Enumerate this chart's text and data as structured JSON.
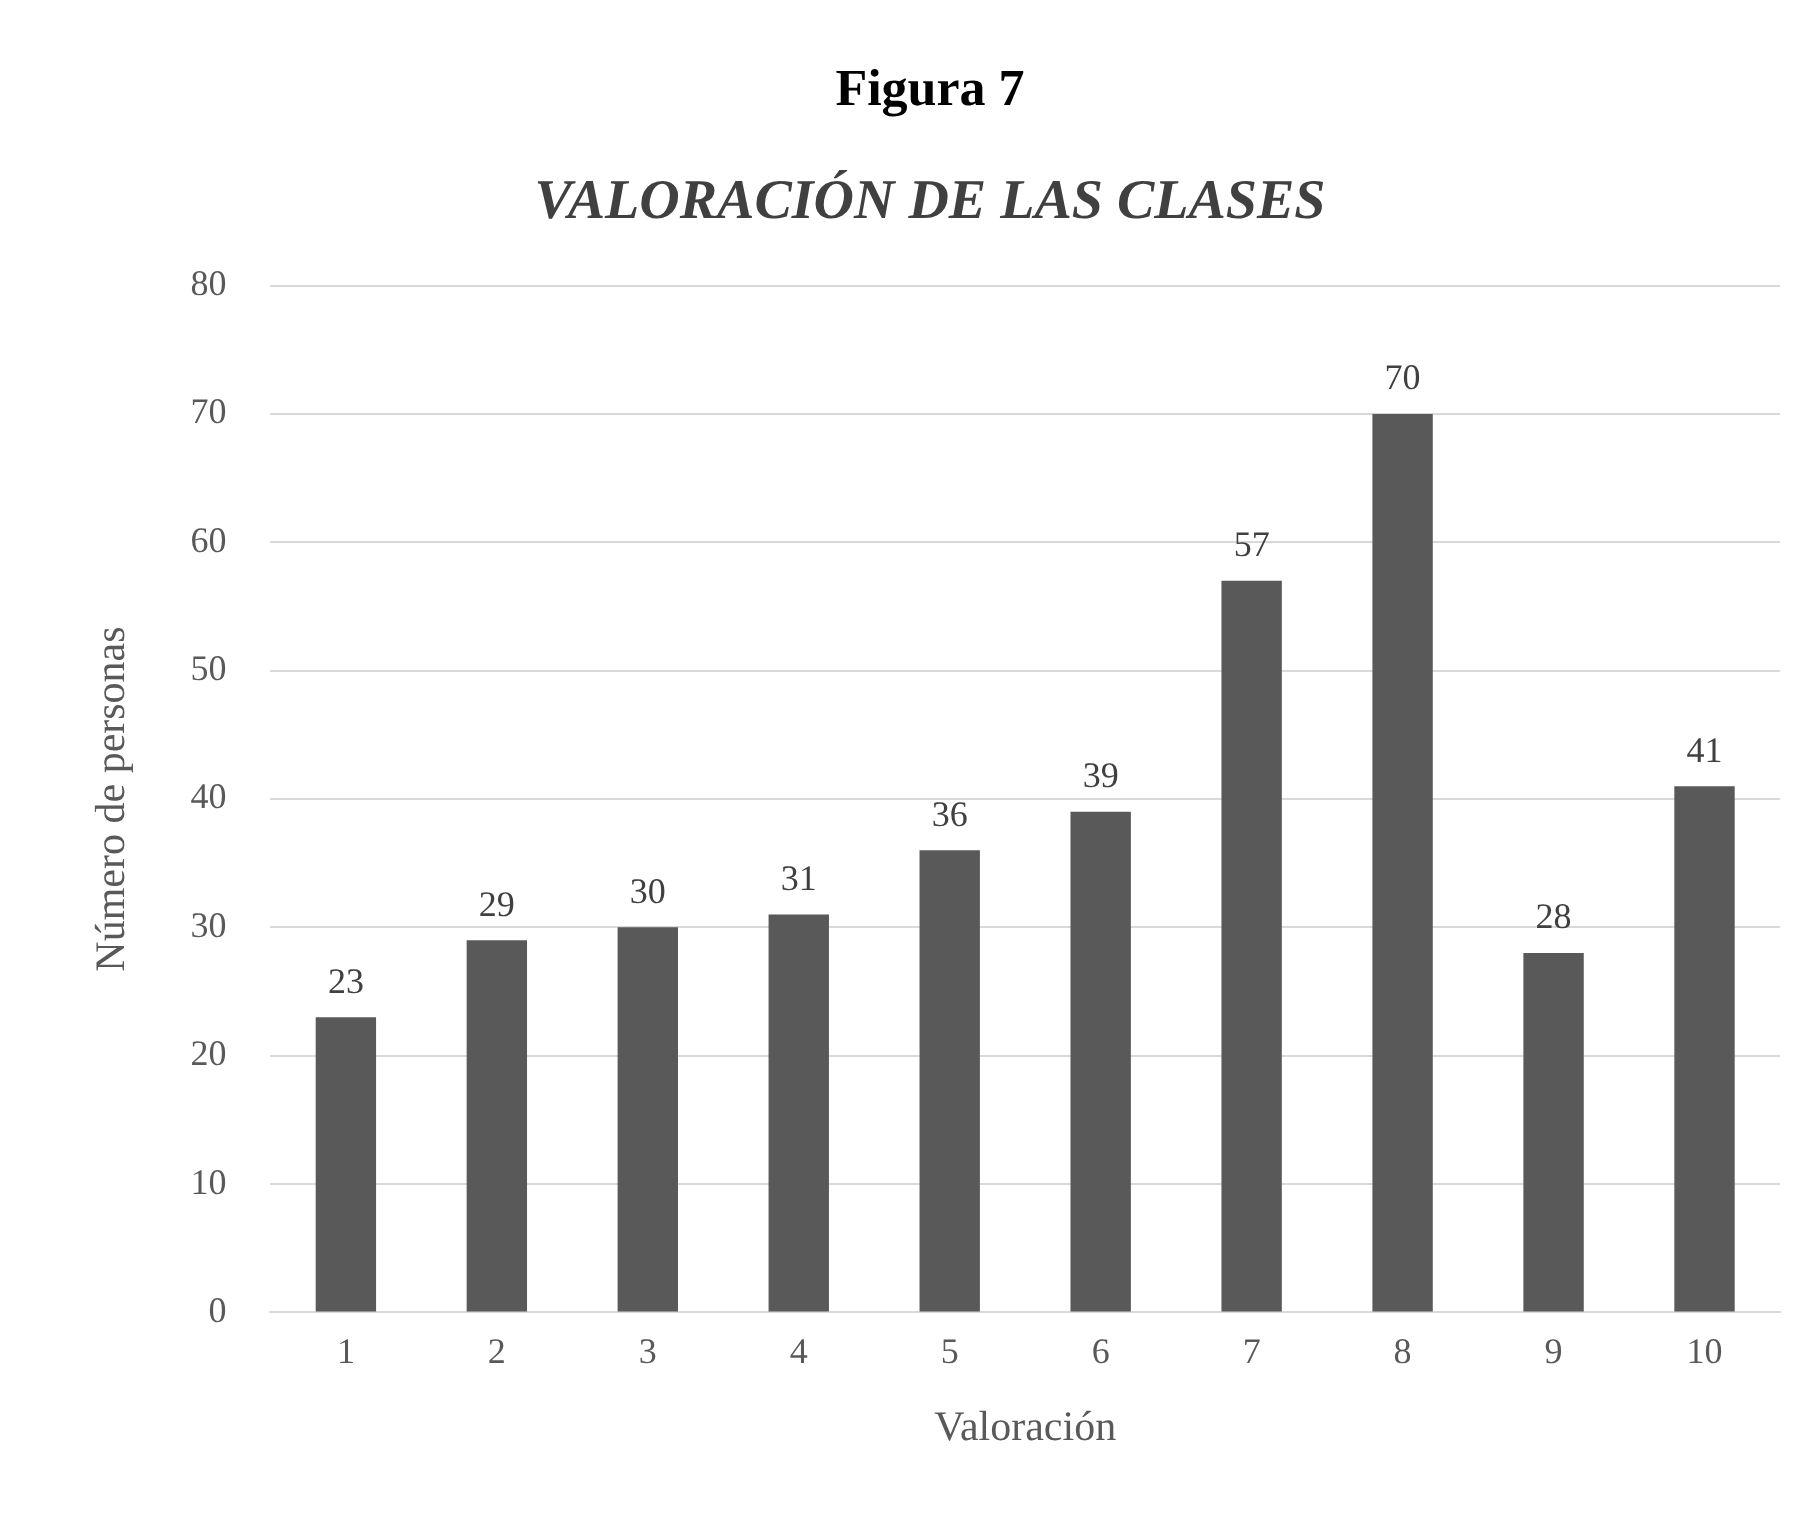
{
  "chart_data": {
    "type": "bar",
    "title": "Figura 7",
    "subtitle": "VALORACIÓN DE LAS CLASES",
    "xlabel": "Valoración",
    "ylabel": "Número de personas",
    "categories": [
      "1",
      "2",
      "3",
      "4",
      "5",
      "6",
      "7",
      "8",
      "9",
      "10"
    ],
    "values": [
      23,
      29,
      30,
      31,
      36,
      39,
      57,
      70,
      28,
      41
    ],
    "color": "#595959",
    "ylim": [
      0,
      80
    ],
    "yticks": [
      0,
      10,
      20,
      30,
      40,
      50,
      60,
      70,
      80
    ],
    "grid": "y",
    "legend": false,
    "data_labels": true
  }
}
